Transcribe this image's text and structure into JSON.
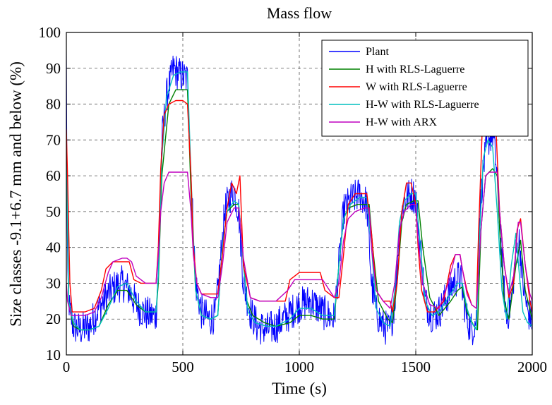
{
  "chart_data": {
    "type": "line",
    "title": "Mass flow",
    "xlabel": "Time (s)",
    "ylabel": "Size classes -9.1+6.7 mm and below (%)",
    "xlim": [
      0,
      2000
    ],
    "ylim": [
      10,
      100
    ],
    "xticks": [
      0,
      500,
      1000,
      1500,
      2000
    ],
    "yticks": [
      10,
      20,
      30,
      40,
      50,
      60,
      70,
      80,
      90,
      100
    ],
    "grid": true,
    "legend_position": "top-right",
    "colors": {
      "Plant": "#0000ff",
      "H with RLS-Laguerre": "#008000",
      "W with RLS-Laguerre": "#ff0000",
      "H-W with RLS-Laguerre": "#00bfbf",
      "H-W with ARX": "#bf00bf"
    },
    "series": [
      {
        "name": "Plant",
        "noise": 5,
        "x": [
          0,
          5,
          15,
          30,
          60,
          100,
          130,
          150,
          180,
          210,
          240,
          270,
          300,
          330,
          360,
          385,
          395,
          410,
          430,
          460,
          490,
          520,
          535,
          555,
          580,
          610,
          640,
          660,
          680,
          700,
          720,
          740,
          760,
          790,
          820,
          860,
          900,
          950,
          1000,
          1050,
          1100,
          1150,
          1170,
          1190,
          1220,
          1260,
          1290,
          1310,
          1330,
          1360,
          1390,
          1410,
          1430,
          1450,
          1480,
          1500,
          1520,
          1540,
          1570,
          1600,
          1640,
          1660,
          1690,
          1700,
          1720,
          1740,
          1760,
          1775,
          1790,
          1810,
          1830,
          1850,
          1870,
          1890,
          1910,
          1930,
          1945,
          1960,
          1980,
          2000
        ],
        "y": [
          94,
          30,
          22,
          18,
          17,
          18,
          22,
          24,
          27,
          29,
          30,
          28,
          24,
          22,
          21,
          21,
          35,
          70,
          82,
          90,
          88,
          87,
          60,
          30,
          22,
          20,
          21,
          35,
          50,
          54,
          56,
          50,
          30,
          22,
          18,
          17,
          18,
          21,
          24,
          25,
          22,
          20,
          35,
          50,
          53,
          55,
          52,
          30,
          22,
          18,
          17,
          25,
          45,
          53,
          55,
          54,
          40,
          25,
          21,
          22,
          27,
          30,
          32,
          28,
          20,
          17,
          20,
          50,
          62,
          70,
          72,
          60,
          35,
          20,
          25,
          38,
          42,
          30,
          22,
          20
        ]
      },
      {
        "name": "H with RLS-Laguerre",
        "x": [
          0,
          10,
          30,
          60,
          100,
          140,
          180,
          220,
          260,
          300,
          340,
          385,
          395,
          410,
          440,
          470,
          500,
          520,
          535,
          555,
          580,
          620,
          650,
          670,
          690,
          720,
          740,
          755,
          775,
          800,
          850,
          900,
          960,
          1000,
          1050,
          1100,
          1150,
          1170,
          1190,
          1210,
          1250,
          1290,
          1300,
          1315,
          1340,
          1380,
          1400,
          1420,
          1440,
          1460,
          1490,
          1510,
          1530,
          1560,
          1600,
          1650,
          1680,
          1700,
          1720,
          1750,
          1765,
          1780,
          1800,
          1830,
          1850,
          1860,
          1880,
          1900,
          1930,
          1950,
          1970,
          2000
        ],
        "y": [
          72,
          25,
          18,
          17,
          17,
          18,
          24,
          28,
          28,
          24,
          22,
          22,
          30,
          60,
          80,
          84,
          84,
          84,
          55,
          28,
          21,
          20,
          21,
          40,
          50,
          52,
          52,
          40,
          25,
          21,
          19,
          18,
          19,
          21,
          21,
          20,
          20,
          35,
          48,
          51,
          52,
          52,
          52,
          40,
          25,
          20,
          19,
          30,
          47,
          52,
          53,
          53,
          40,
          26,
          21,
          25,
          28,
          29,
          22,
          18,
          17,
          45,
          60,
          62,
          60,
          45,
          25,
          20,
          35,
          42,
          28,
          20
        ]
      },
      {
        "name": "W with RLS-Laguerre",
        "x": [
          0,
          5,
          15,
          25,
          40,
          80,
          120,
          150,
          170,
          200,
          240,
          270,
          290,
          320,
          360,
          385,
          395,
          405,
          420,
          440,
          470,
          500,
          520,
          535,
          545,
          560,
          580,
          620,
          650,
          670,
          690,
          710,
          730,
          745,
          760,
          790,
          830,
          880,
          940,
          960,
          1000,
          1050,
          1090,
          1110,
          1150,
          1170,
          1190,
          1210,
          1240,
          1270,
          1290,
          1310,
          1330,
          1360,
          1390,
          1400,
          1420,
          1440,
          1460,
          1480,
          1500,
          1510,
          1525,
          1550,
          1580,
          1620,
          1650,
          1670,
          1690,
          1700,
          1720,
          1740,
          1760,
          1770,
          1785,
          1800,
          1815,
          1830,
          1845,
          1860,
          1880,
          1900,
          1920,
          1935,
          1950,
          1970,
          1990,
          2000
        ],
        "y": [
          73,
          60,
          30,
          22,
          22,
          22,
          23,
          28,
          34,
          36,
          36,
          36,
          31,
          30,
          30,
          30,
          40,
          62,
          77,
          80,
          81,
          81,
          80,
          60,
          40,
          30,
          27,
          27,
          27,
          38,
          51,
          58,
          55,
          60,
          35,
          26,
          25,
          25,
          25,
          31,
          33,
          33,
          33,
          28,
          26,
          26,
          38,
          52,
          55,
          55,
          55,
          44,
          28,
          25,
          25,
          22,
          30,
          50,
          58,
          58,
          52,
          40,
          28,
          22,
          22,
          25,
          35,
          38,
          38,
          34,
          28,
          24,
          23,
          45,
          72,
          78,
          80,
          80,
          72,
          50,
          35,
          26,
          30,
          45,
          48,
          35,
          25,
          22
        ]
      },
      {
        "name": "H-W with RLS-Laguerre",
        "x": [
          0,
          10,
          30,
          60,
          100,
          140,
          180,
          220,
          260,
          300,
          340,
          385,
          395,
          410,
          430,
          460,
          490,
          520,
          535,
          555,
          580,
          620,
          650,
          670,
          690,
          720,
          740,
          760,
          780,
          810,
          860,
          900,
          960,
          1000,
          1050,
          1100,
          1150,
          1170,
          1190,
          1220,
          1260,
          1290,
          1310,
          1330,
          1360,
          1390,
          1410,
          1430,
          1450,
          1480,
          1500,
          1520,
          1540,
          1570,
          1600,
          1640,
          1680,
          1700,
          1720,
          1740,
          1760,
          1775,
          1790,
          1810,
          1830,
          1850,
          1870,
          1890,
          1910,
          1930,
          1945,
          1960,
          1980,
          2000
        ],
        "y": [
          70,
          25,
          19,
          17,
          17,
          18,
          23,
          29,
          30,
          25,
          22,
          22,
          32,
          65,
          82,
          88,
          89,
          89,
          60,
          28,
          21,
          20,
          21,
          40,
          50,
          53,
          52,
          35,
          22,
          19,
          18,
          18,
          20,
          23,
          23,
          21,
          21,
          35,
          48,
          52,
          54,
          54,
          40,
          23,
          19,
          18,
          28,
          47,
          53,
          55,
          55,
          40,
          25,
          21,
          22,
          26,
          30,
          30,
          23,
          19,
          17,
          45,
          65,
          70,
          68,
          50,
          28,
          20,
          35,
          44,
          32,
          22,
          19,
          18
        ]
      },
      {
        "name": "H-W with ARX",
        "x": [
          0,
          5,
          20,
          40,
          80,
          120,
          150,
          180,
          200,
          240,
          260,
          280,
          300,
          340,
          385,
          395,
          405,
          420,
          440,
          460,
          480,
          500,
          520,
          535,
          545,
          560,
          580,
          620,
          650,
          670,
          690,
          720,
          740,
          760,
          790,
          830,
          900,
          950,
          980,
          1000,
          1050,
          1100,
          1150,
          1170,
          1190,
          1210,
          1240,
          1280,
          1300,
          1310,
          1330,
          1360,
          1390,
          1410,
          1430,
          1450,
          1480,
          1500,
          1510,
          1530,
          1560,
          1600,
          1640,
          1670,
          1690,
          1700,
          1720,
          1740,
          1760,
          1780,
          1800,
          1815,
          1830,
          1850,
          1860,
          1880,
          1900,
          1920,
          1940,
          1950,
          1970,
          1990,
          2000
        ],
        "y": [
          30,
          25,
          21,
          21,
          21,
          22,
          26,
          33,
          36,
          37,
          37,
          36,
          32,
          30,
          30,
          38,
          50,
          58,
          61,
          61,
          61,
          61,
          61,
          50,
          38,
          30,
          27,
          26,
          26,
          35,
          47,
          51,
          51,
          37,
          26,
          25,
          25,
          28,
          31,
          31,
          31,
          31,
          26,
          30,
          42,
          48,
          50,
          51,
          51,
          40,
          28,
          25,
          23,
          30,
          45,
          50,
          52,
          52,
          42,
          30,
          24,
          23,
          30,
          38,
          38,
          34,
          27,
          24,
          23,
          45,
          60,
          61,
          61,
          61,
          50,
          35,
          27,
          32,
          47,
          47,
          35,
          27,
          25
        ]
      }
    ]
  }
}
